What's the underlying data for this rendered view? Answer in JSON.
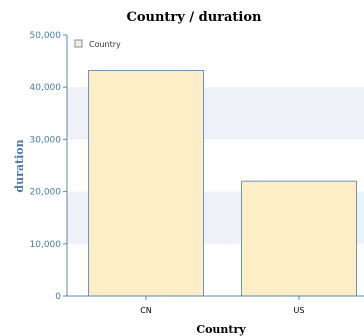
{
  "chart_data": {
    "type": "bar",
    "title": "Country / duration",
    "xlabel": "Country",
    "ylabel": "duration",
    "categories": [
      "CN",
      "US"
    ],
    "series": [
      {
        "name": "Country",
        "values": [
          43200,
          22000
        ]
      }
    ],
    "ylim": [
      0,
      50000
    ],
    "yticks": [
      0,
      10000,
      20000,
      30000,
      40000,
      50000
    ],
    "ytick_labels": [
      "0",
      "10,000",
      "20,000",
      "30,000",
      "40,000",
      "50,000"
    ],
    "legend_position": "top-left",
    "grid": "alternating horizontal bands",
    "colors": {
      "bar_fill": "#fdeec7",
      "bar_stroke": "#6d93c0",
      "band": "#eef2f8",
      "axis": "#5a87b8",
      "tick_text": "#4a7ab0",
      "ylabel": "#4a7ab0"
    }
  }
}
